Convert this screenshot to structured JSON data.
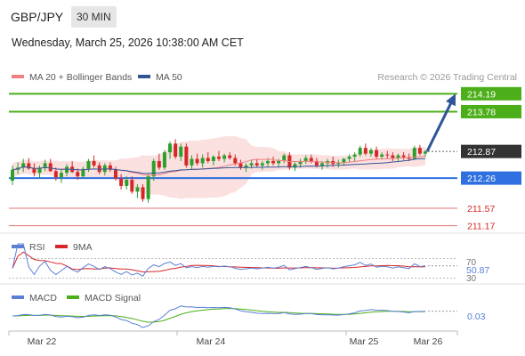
{
  "header": {
    "symbol": "GBP/JPY",
    "timeframe": "30 MIN",
    "datetime": "Wednesday, March 25, 2026 10:38:00 AM CET"
  },
  "legend": {
    "ma20_label": "MA 20 + Bollinger Bands",
    "ma20_color": "#f08080",
    "ma50_label": "MA 50",
    "ma50_color": "#2f5597",
    "credit": "Research © 2026 Trading Central"
  },
  "colors": {
    "up": "#2ca02c",
    "down": "#d62728",
    "resistance": "#4caf1a",
    "pivot": "#2f6fe0",
    "support": "#e57373",
    "arrow": "#2f5597",
    "band_fill": "#fbe0e0",
    "rsi": "#5b7fd6",
    "rsi_ma": "#d62728",
    "macd": "#5b7fd6",
    "macd_signal": "#4caf1a"
  },
  "chart_data": [
    {
      "type": "candlestick",
      "name": "price",
      "x_ticks": [
        "Mar 22",
        "Mar 24",
        "Mar 25",
        "Mar 26"
      ],
      "ylim": [
        211.0,
        214.4
      ],
      "last_price": 212.87,
      "arrow_target": 214.19,
      "levels": [
        {
          "value": 214.19,
          "label": "214.19",
          "kind": "resistance"
        },
        {
          "value": 213.78,
          "label": "213.78",
          "kind": "resistance"
        },
        {
          "value": 212.26,
          "label": "212.26",
          "kind": "pivot"
        },
        {
          "value": 211.57,
          "label": "211.57",
          "kind": "support"
        },
        {
          "value": 211.17,
          "label": "211.17",
          "kind": "support"
        }
      ],
      "ohlc": [
        [
          212.2,
          212.55,
          212.1,
          212.45
        ],
        [
          212.45,
          212.62,
          212.35,
          212.5
        ],
        [
          212.5,
          212.7,
          212.4,
          212.6
        ],
        [
          212.6,
          212.72,
          212.45,
          212.48
        ],
        [
          212.48,
          212.6,
          212.3,
          212.38
        ],
        [
          212.38,
          212.55,
          212.25,
          212.5
        ],
        [
          212.5,
          212.68,
          212.42,
          212.6
        ],
        [
          212.6,
          212.7,
          212.4,
          212.42
        ],
        [
          212.42,
          212.5,
          212.2,
          212.28
        ],
        [
          212.28,
          212.45,
          212.15,
          212.38
        ],
        [
          212.38,
          212.58,
          212.3,
          212.52
        ],
        [
          212.52,
          212.65,
          212.38,
          212.4
        ],
        [
          212.4,
          212.48,
          212.22,
          212.3
        ],
        [
          212.3,
          212.52,
          212.25,
          212.47
        ],
        [
          212.47,
          212.7,
          212.4,
          212.65
        ],
        [
          212.65,
          212.78,
          212.5,
          212.55
        ],
        [
          212.55,
          212.62,
          212.35,
          212.4
        ],
        [
          212.4,
          212.6,
          212.32,
          212.55
        ],
        [
          212.55,
          212.62,
          212.4,
          212.45
        ],
        [
          212.45,
          212.52,
          212.2,
          212.25
        ],
        [
          212.25,
          212.35,
          212.0,
          212.08
        ],
        [
          212.08,
          212.3,
          212.0,
          212.22
        ],
        [
          212.22,
          212.3,
          211.9,
          211.95
        ],
        [
          211.95,
          212.12,
          211.8,
          212.05
        ],
        [
          212.05,
          212.12,
          211.72,
          211.78
        ],
        [
          211.78,
          212.35,
          211.7,
          212.3
        ],
        [
          212.3,
          212.7,
          212.2,
          212.65
        ],
        [
          212.65,
          212.82,
          212.45,
          212.5
        ],
        [
          212.5,
          212.9,
          212.45,
          212.85
        ],
        [
          212.85,
          213.1,
          212.7,
          213.05
        ],
        [
          213.05,
          213.15,
          212.7,
          212.75
        ],
        [
          212.75,
          213.05,
          212.65,
          212.98
        ],
        [
          212.98,
          213.05,
          212.5,
          212.55
        ],
        [
          212.55,
          212.78,
          212.45,
          212.7
        ],
        [
          212.7,
          212.82,
          212.55,
          212.6
        ],
        [
          212.6,
          212.8,
          212.5,
          212.72
        ],
        [
          212.72,
          212.85,
          212.6,
          212.65
        ],
        [
          212.65,
          212.78,
          212.55,
          212.75
        ],
        [
          212.75,
          212.88,
          212.65,
          212.7
        ],
        [
          212.7,
          212.82,
          212.62,
          212.78
        ],
        [
          212.78,
          212.85,
          212.68,
          212.72
        ],
        [
          212.72,
          212.8,
          212.55,
          212.6
        ],
        [
          212.6,
          212.68,
          212.45,
          212.5
        ],
        [
          212.5,
          212.6,
          212.4,
          212.55
        ],
        [
          212.55,
          212.68,
          212.48,
          212.6
        ],
        [
          212.6,
          212.7,
          212.5,
          212.55
        ],
        [
          212.55,
          212.65,
          212.45,
          212.6
        ],
        [
          212.6,
          212.72,
          212.52,
          212.65
        ],
        [
          212.65,
          212.75,
          212.55,
          212.6
        ],
        [
          212.6,
          212.7,
          212.5,
          212.65
        ],
        [
          212.65,
          212.82,
          212.6,
          212.78
        ],
        [
          212.78,
          212.85,
          212.45,
          212.5
        ],
        [
          212.5,
          212.62,
          212.42,
          212.58
        ],
        [
          212.58,
          212.7,
          212.5,
          212.65
        ],
        [
          212.65,
          212.78,
          212.58,
          212.72
        ],
        [
          212.72,
          212.8,
          212.6,
          212.65
        ],
        [
          212.65,
          212.72,
          212.5,
          212.55
        ],
        [
          212.55,
          212.65,
          212.45,
          212.6
        ],
        [
          212.6,
          212.7,
          212.5,
          212.65
        ],
        [
          212.65,
          212.75,
          212.52,
          212.58
        ],
        [
          212.58,
          212.68,
          212.5,
          212.62
        ],
        [
          212.62,
          212.72,
          212.55,
          212.7
        ],
        [
          212.7,
          212.8,
          212.62,
          212.75
        ],
        [
          212.75,
          212.85,
          212.65,
          212.8
        ],
        [
          212.8,
          213.0,
          212.75,
          212.95
        ],
        [
          212.95,
          213.05,
          212.78,
          212.82
        ],
        [
          212.82,
          212.95,
          212.75,
          212.9
        ],
        [
          212.9,
          212.98,
          212.7,
          212.75
        ],
        [
          212.75,
          212.85,
          212.68,
          212.8
        ],
        [
          212.8,
          212.88,
          212.7,
          212.78
        ],
        [
          212.78,
          212.85,
          212.65,
          212.72
        ],
        [
          212.72,
          212.82,
          212.65,
          212.78
        ],
        [
          212.78,
          212.85,
          212.68,
          212.74
        ],
        [
          212.74,
          212.82,
          212.65,
          212.7
        ],
        [
          212.7,
          213.0,
          212.68,
          212.95
        ],
        [
          212.95,
          213.02,
          212.78,
          212.82
        ],
        [
          212.82,
          212.9,
          212.74,
          212.87
        ]
      ]
    },
    {
      "type": "line",
      "name": "RSI",
      "legend": [
        "RSI",
        "9MA"
      ],
      "levels": [
        70,
        30
      ],
      "level_labels": [
        "70",
        "30"
      ],
      "last_value": "50.87",
      "ylim": [
        20,
        80
      ]
    },
    {
      "type": "line",
      "name": "MACD",
      "legend": [
        "MACD",
        "MACD Signal"
      ],
      "last_value": "0.03"
    }
  ]
}
